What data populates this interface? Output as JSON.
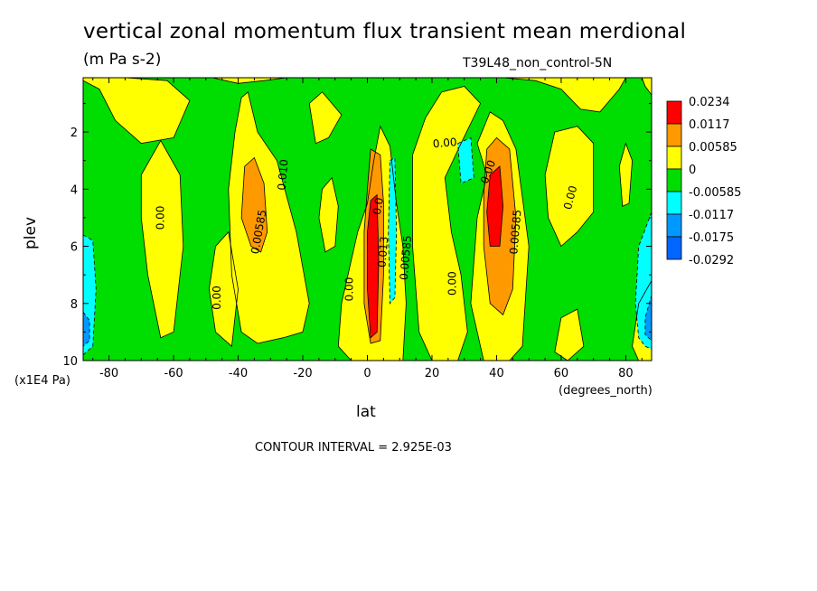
{
  "chart_data": {
    "type": "heatmap",
    "title": "vertical zonal momentum flux transient mean merdional",
    "units": "(m Pa s-2)",
    "dataset_label": "T39L48_non_control-5N",
    "xlabel": "lat",
    "x_unit_label": "(degrees_north)",
    "ylabel": "plev",
    "y_unit_label": "(x1E4 Pa)",
    "footer": "CONTOUR INTERVAL = 2.925E-03",
    "xlim": [
      -88,
      88
    ],
    "ylim": [
      10,
      0.1
    ],
    "x_ticks": [
      -80,
      -60,
      -40,
      -20,
      0,
      20,
      40,
      60,
      80
    ],
    "x_tick_labels": [
      "-80",
      "-60",
      "-40",
      "-20",
      "0",
      "20",
      "40",
      "60",
      "80"
    ],
    "y_ticks": [
      2,
      4,
      6,
      8,
      10
    ],
    "y_tick_labels": [
      "2",
      "4",
      "6",
      "8",
      "10"
    ],
    "legend": [
      {
        "label": "0.0234",
        "color": "#ff0000"
      },
      {
        "label": "0.0117",
        "color": "#ff9900"
      },
      {
        "label": "0.00585",
        "color": "#ffff00"
      },
      {
        "label": "0",
        "color": "#00dd00"
      },
      {
        "label": "-0.00585",
        "color": "#00ffff"
      },
      {
        "label": "-0.0117",
        "color": "#0099ff"
      },
      {
        "label": "-0.0175",
        "color": "#0066ff"
      },
      {
        "label": "-0.0292",
        "color": ""
      }
    ],
    "background_color": "#00dd00",
    "regions": [
      {
        "level": "yellow",
        "points": [
          [
            -88,
            0.2
          ],
          [
            -83,
            0.5
          ],
          [
            -78,
            1.6
          ],
          [
            -70,
            2.4
          ],
          [
            -60,
            2.2
          ],
          [
            -55,
            0.9
          ],
          [
            -62,
            0.2
          ],
          [
            -75,
            0.1
          ],
          [
            -88,
            0.1
          ]
        ]
      },
      {
        "level": "yellow",
        "points": [
          [
            -48,
            0.1
          ],
          [
            -40,
            0.3
          ],
          [
            -32,
            0.2
          ],
          [
            -25,
            0.1
          ]
        ]
      },
      {
        "level": "yellow",
        "points": [
          [
            -70,
            3.5
          ],
          [
            -64,
            2.3
          ],
          [
            -58,
            3.5
          ],
          [
            -57,
            6.0
          ],
          [
            -60,
            9.0
          ],
          [
            -64,
            9.2
          ],
          [
            -68,
            7.0
          ],
          [
            -70,
            5.0
          ]
        ]
      },
      {
        "level": "yellow",
        "points": [
          [
            -47,
            6.0
          ],
          [
            -43,
            5.5
          ],
          [
            -40,
            7.5
          ],
          [
            -42,
            9.5
          ],
          [
            -47,
            9.0
          ],
          [
            -49,
            7.5
          ]
        ]
      },
      {
        "level": "yellow",
        "points": [
          [
            -41,
            2.0
          ],
          [
            -39,
            0.8
          ],
          [
            -37,
            0.6
          ],
          [
            -34,
            2.0
          ],
          [
            -28,
            3.0
          ],
          [
            -22,
            5.5
          ],
          [
            -18,
            8.0
          ],
          [
            -20,
            9.0
          ],
          [
            -26,
            9.2
          ],
          [
            -34,
            9.4
          ],
          [
            -39,
            9.0
          ],
          [
            -42,
            7.0
          ],
          [
            -43,
            4.0
          ]
        ]
      },
      {
        "level": "yellow",
        "points": [
          [
            -18,
            1.0
          ],
          [
            -14,
            0.6
          ],
          [
            -8,
            1.4
          ],
          [
            -12,
            2.2
          ],
          [
            -16,
            2.4
          ]
        ]
      },
      {
        "level": "yellow",
        "points": [
          [
            -14,
            4.0
          ],
          [
            -11,
            3.6
          ],
          [
            -9,
            4.6
          ],
          [
            -10,
            6.0
          ],
          [
            -13,
            6.2
          ],
          [
            -15,
            5.0
          ]
        ]
      },
      {
        "level": "yellow",
        "points": [
          [
            -8,
            8.0
          ],
          [
            -5,
            6.5
          ],
          [
            -3,
            5.5
          ],
          [
            0,
            4.5
          ],
          [
            2,
            3.0
          ],
          [
            4,
            1.8
          ],
          [
            7,
            2.5
          ],
          [
            9,
            4.5
          ],
          [
            11,
            6.0
          ],
          [
            12,
            8.0
          ],
          [
            11,
            10
          ],
          [
            -5,
            10
          ],
          [
            -9,
            9.5
          ]
        ]
      },
      {
        "level": "yellow",
        "points": [
          [
            14,
            2.8
          ],
          [
            18,
            1.5
          ],
          [
            23,
            0.6
          ],
          [
            30,
            0.4
          ],
          [
            35,
            1.0
          ],
          [
            29,
            2.4
          ],
          [
            24,
            3.6
          ],
          [
            26,
            5.5
          ],
          [
            29,
            7.0
          ],
          [
            31,
            9.0
          ],
          [
            28,
            10
          ],
          [
            20,
            10
          ],
          [
            16,
            9.0
          ],
          [
            14,
            6.0
          ]
        ]
      },
      {
        "level": "yellow",
        "points": [
          [
            37,
            3.5
          ],
          [
            34,
            2.4
          ],
          [
            38,
            1.3
          ],
          [
            42,
            1.6
          ],
          [
            46,
            2.6
          ],
          [
            50,
            6.0
          ],
          [
            48,
            9.5
          ],
          [
            44,
            10
          ],
          [
            36,
            10
          ],
          [
            32,
            8.0
          ],
          [
            34,
            5.0
          ]
        ]
      },
      {
        "level": "yellow",
        "points": [
          [
            42,
            0.1
          ],
          [
            52,
            0.2
          ],
          [
            60,
            0.5
          ],
          [
            66,
            1.2
          ],
          [
            72,
            1.3
          ],
          [
            78,
            0.5
          ],
          [
            80,
            0.1
          ]
        ]
      },
      {
        "level": "yellow",
        "points": [
          [
            55,
            3.5
          ],
          [
            58,
            2.0
          ],
          [
            65,
            1.8
          ],
          [
            70,
            2.4
          ],
          [
            70,
            4.8
          ],
          [
            65,
            5.5
          ],
          [
            60,
            6.0
          ],
          [
            56,
            5.0
          ]
        ]
      },
      {
        "level": "yellow",
        "points": [
          [
            60,
            8.5
          ],
          [
            65,
            8.2
          ],
          [
            67,
            9.5
          ],
          [
            62,
            10
          ],
          [
            58,
            9.7
          ]
        ]
      },
      {
        "level": "yellow",
        "points": [
          [
            78,
            3.2
          ],
          [
            80,
            2.4
          ],
          [
            82,
            3.0
          ],
          [
            81,
            4.5
          ],
          [
            79,
            4.6
          ]
        ]
      },
      {
        "level": "yellow",
        "points": [
          [
            88,
            7.2
          ],
          [
            84,
            8.0
          ],
          [
            82,
            9.5
          ],
          [
            84,
            10
          ],
          [
            88,
            10
          ]
        ]
      },
      {
        "level": "yellow",
        "points": [
          [
            85,
            0.1
          ],
          [
            88,
            0.1
          ],
          [
            88,
            0.7
          ],
          [
            86,
            0.4
          ]
        ]
      },
      {
        "level": "orange",
        "points": [
          [
            -38,
            3.2
          ],
          [
            -35,
            2.9
          ],
          [
            -32,
            3.8
          ],
          [
            -31,
            5.5
          ],
          [
            -33,
            6.2
          ],
          [
            -36,
            6.0
          ],
          [
            -39,
            5.0
          ]
        ]
      },
      {
        "level": "orange",
        "points": [
          [
            1,
            2.6
          ],
          [
            4,
            2.8
          ],
          [
            5,
            4.5
          ],
          [
            5,
            7.0
          ],
          [
            4,
            9.3
          ],
          [
            1,
            9.4
          ],
          [
            -1,
            8.0
          ],
          [
            -1,
            5.5
          ],
          [
            0,
            4.0
          ]
        ]
      },
      {
        "level": "orange",
        "points": [
          [
            37,
            2.6
          ],
          [
            40,
            2.2
          ],
          [
            44,
            2.6
          ],
          [
            46,
            5.0
          ],
          [
            45,
            7.5
          ],
          [
            42,
            8.4
          ],
          [
            38,
            8.0
          ],
          [
            36,
            6.0
          ],
          [
            36,
            4.2
          ]
        ]
      },
      {
        "level": "red",
        "points": [
          [
            1,
            4.4
          ],
          [
            3,
            4.2
          ],
          [
            3.5,
            6.5
          ],
          [
            3,
            9.0
          ],
          [
            1,
            9.2
          ],
          [
            0,
            7.5
          ],
          [
            0,
            5.5
          ]
        ]
      },
      {
        "level": "red",
        "points": [
          [
            38,
            3.5
          ],
          [
            41,
            3.2
          ],
          [
            42,
            4.6
          ],
          [
            41,
            6.0
          ],
          [
            38,
            6.0
          ],
          [
            37,
            4.8
          ]
        ]
      },
      {
        "level": "cyan",
        "points": [
          [
            28,
            2.4
          ],
          [
            32,
            2.2
          ],
          [
            33,
            3.6
          ],
          [
            29,
            3.8
          ]
        ]
      },
      {
        "level": "cyan",
        "points": [
          [
            7,
            3.0
          ],
          [
            8.5,
            2.9
          ],
          [
            9,
            5.5
          ],
          [
            8.5,
            7.8
          ],
          [
            7,
            8.0
          ],
          [
            6.5,
            5.5
          ]
        ]
      },
      {
        "level": "cyan",
        "points": [
          [
            -88,
            5.6
          ],
          [
            -85,
            5.8
          ],
          [
            -84,
            7.5
          ],
          [
            -85,
            9.5
          ],
          [
            -88,
            9.8
          ]
        ]
      },
      {
        "level": "cyan",
        "points": [
          [
            88,
            4.8
          ],
          [
            84,
            6.0
          ],
          [
            83,
            8.0
          ],
          [
            84,
            9.2
          ],
          [
            86,
            9.5
          ],
          [
            88,
            9.6
          ]
        ]
      },
      {
        "level": "blue",
        "points": [
          [
            -88,
            8.3
          ],
          [
            -86,
            8.6
          ],
          [
            -86,
            9.3
          ],
          [
            -88,
            9.5
          ]
        ]
      },
      {
        "level": "blue",
        "points": [
          [
            88,
            7.7
          ],
          [
            86,
            8.5
          ],
          [
            86,
            9.1
          ],
          [
            88,
            9.3
          ]
        ]
      }
    ],
    "contour_labels": [
      {
        "text": "0.00",
        "x": -64,
        "y": 5.0,
        "rotation": -90
      },
      {
        "text": "0.00",
        "x": -46.5,
        "y": 7.8,
        "rotation": -90
      },
      {
        "text": "0.00585",
        "x": -33.5,
        "y": 5.5,
        "rotation": -80
      },
      {
        "text": "0.010",
        "x": -26,
        "y": 3.5,
        "rotation": -85
      },
      {
        "text": "0.00",
        "x": -5.5,
        "y": 7.5,
        "rotation": -90
      },
      {
        "text": "0.0",
        "x": 3.5,
        "y": 4.6,
        "rotation": -80
      },
      {
        "text": "0.013",
        "x": 5,
        "y": 6.2,
        "rotation": -85
      },
      {
        "text": "0.00585",
        "x": 12,
        "y": 6.4,
        "rotation": -85
      },
      {
        "text": "0.00",
        "x": 24,
        "y": 2.4,
        "rotation": -5
      },
      {
        "text": "0.00",
        "x": 26.5,
        "y": 7.3,
        "rotation": -90
      },
      {
        "text": "0.00",
        "x": 37.5,
        "y": 3.4,
        "rotation": -70
      },
      {
        "text": "0.00585",
        "x": 46,
        "y": 5.5,
        "rotation": -85
      },
      {
        "text": "0.00",
        "x": 63,
        "y": 4.3,
        "rotation": -75
      }
    ]
  }
}
